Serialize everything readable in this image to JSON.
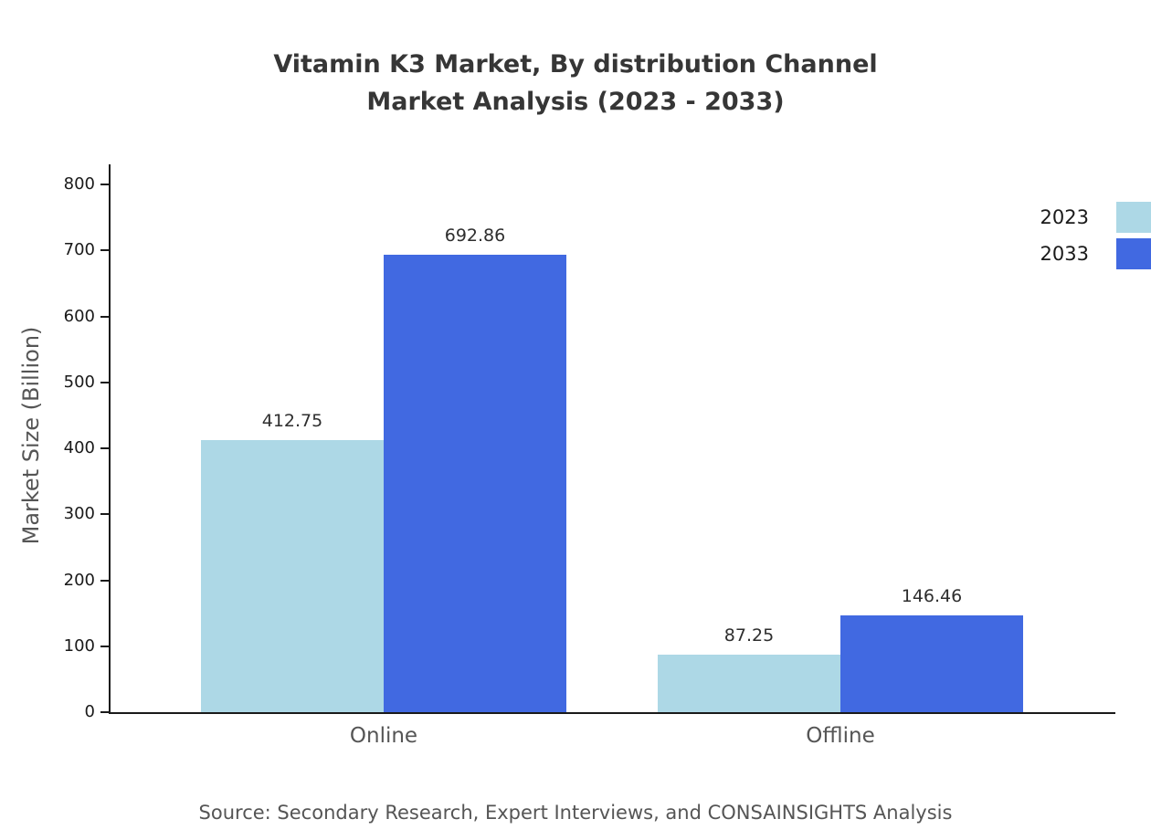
{
  "title": {
    "line1": "Vitamin K3 Market, By distribution Channel",
    "line2": "Market Analysis (2023 - 2033)"
  },
  "source": "Source: Secondary Research, Expert Interviews, and CONSAINSIGHTS Analysis",
  "chart_data": {
    "type": "bar",
    "title": "Vitamin K3 Market, By distribution Channel Market Analysis (2023 - 2033)",
    "categories": [
      "Online",
      "Offline"
    ],
    "series": [
      {
        "name": "2023",
        "color": "#add8e6",
        "values": [
          412.75,
          87.25
        ]
      },
      {
        "name": "2033",
        "color": "#4169e1",
        "values": [
          692.86,
          146.46
        ]
      }
    ],
    "xlabel": "",
    "ylabel": "Market Size (Billion)",
    "ylim": [
      0,
      800
    ],
    "yticks": [
      0,
      100,
      200,
      300,
      400,
      500,
      600,
      700,
      800
    ],
    "grid": false,
    "legend_position": "top-right"
  }
}
